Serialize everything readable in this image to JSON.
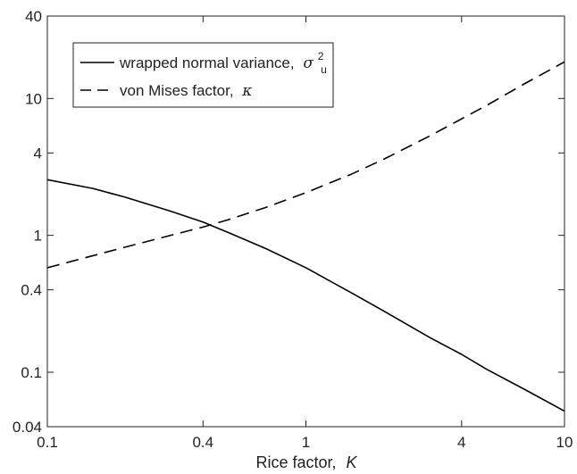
{
  "chart_data": {
    "type": "line",
    "xlabel_text": "Rice factor,",
    "xlabel_symbol": "K",
    "ylabel": "",
    "xscale": "log",
    "yscale": "log",
    "xlim": [
      0.1,
      10
    ],
    "ylim": [
      0.04,
      40
    ],
    "xticks": [
      0.1,
      0.4,
      1,
      4,
      10
    ],
    "xtick_labels": [
      "0.1",
      "0.4",
      "1",
      "4",
      "10"
    ],
    "yticks": [
      0.04,
      0.1,
      0.4,
      1,
      4,
      10,
      40
    ],
    "ytick_labels": [
      "0.04",
      "0.1",
      "0.4",
      "1",
      "4",
      "10",
      "40"
    ],
    "grid": false,
    "legend_position": "top-left",
    "series": [
      {
        "name": "wrapped normal variance,",
        "name_symbol": "σ",
        "name_sub": "u",
        "name_sup": "2",
        "color": "#000000",
        "style": "solid",
        "x": [
          0.1,
          0.15,
          0.2,
          0.3,
          0.4,
          0.5,
          0.7,
          1,
          1.5,
          2,
          3,
          4,
          5,
          7,
          10
        ],
        "y": [
          2.55,
          2.2,
          1.9,
          1.5,
          1.25,
          1.05,
          0.8,
          0.58,
          0.38,
          0.28,
          0.18,
          0.135,
          0.105,
          0.075,
          0.052
        ]
      },
      {
        "name": "von Mises factor,",
        "name_symbol": "κ",
        "name_sub": "",
        "name_sup": "",
        "color": "#000000",
        "style": "dashed",
        "x": [
          0.1,
          0.15,
          0.2,
          0.3,
          0.4,
          0.5,
          0.7,
          1,
          1.5,
          2,
          3,
          4,
          5,
          7,
          10
        ],
        "y": [
          0.58,
          0.71,
          0.82,
          1.0,
          1.15,
          1.3,
          1.6,
          2.05,
          2.8,
          3.6,
          5.3,
          7.1,
          8.9,
          12.8,
          18.5
        ]
      }
    ]
  }
}
